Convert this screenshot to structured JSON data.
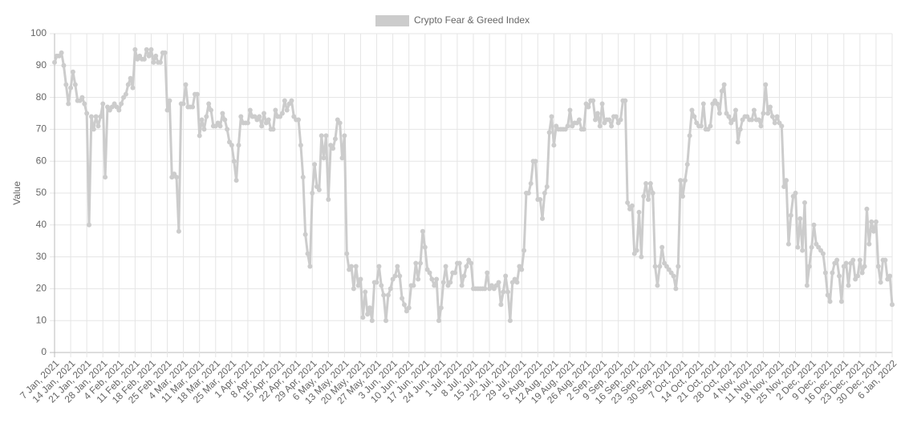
{
  "chart_data": {
    "type": "line",
    "y_label": "Value",
    "ylim": [
      0,
      100
    ],
    "yticks": [
      0,
      10,
      20,
      30,
      40,
      50,
      60,
      70,
      80,
      90,
      100
    ],
    "grid": true,
    "legend": "top",
    "categories": [
      "7 Jan, 2021",
      null,
      null,
      null,
      null,
      null,
      null,
      "14 Jan, 2021",
      null,
      null,
      null,
      null,
      null,
      null,
      "21 Jan, 2021",
      null,
      null,
      null,
      null,
      null,
      null,
      "28 Jan, 2021",
      null,
      null,
      null,
      null,
      null,
      null,
      "4 Feb, 2021",
      null,
      null,
      null,
      null,
      null,
      null,
      "11 Feb, 2021",
      null,
      null,
      null,
      null,
      null,
      null,
      "18 Feb, 2021",
      null,
      null,
      null,
      null,
      null,
      null,
      "25 Feb, 2021",
      null,
      null,
      null,
      null,
      null,
      null,
      "4 Mar, 2021",
      null,
      null,
      null,
      null,
      null,
      null,
      "11 Mar, 2021",
      null,
      null,
      null,
      null,
      null,
      null,
      "18 Mar, 2021",
      null,
      null,
      null,
      null,
      null,
      null,
      "25 Mar, 2021",
      null,
      null,
      null,
      null,
      null,
      null,
      "1 Apr, 2021",
      null,
      null,
      null,
      null,
      null,
      null,
      "8 Apr, 2021",
      null,
      null,
      null,
      null,
      null,
      null,
      "15 Apr, 2021",
      null,
      null,
      null,
      null,
      null,
      null,
      "22 Apr, 2021",
      null,
      null,
      null,
      null,
      null,
      null,
      "29 Apr, 2021",
      null,
      null,
      null,
      null,
      null,
      null,
      "6 May, 2021",
      null,
      null,
      null,
      null,
      null,
      null,
      "13 May, 2021",
      null,
      null,
      null,
      null,
      null,
      null,
      "20 May, 2021",
      null,
      null,
      null,
      null,
      null,
      null,
      "27 May, 2021",
      null,
      null,
      null,
      null,
      null,
      null,
      "3 Jun, 2021",
      null,
      null,
      null,
      null,
      null,
      null,
      "10 Jun, 2021",
      null,
      null,
      null,
      null,
      null,
      null,
      "17 Jun, 2021",
      null,
      null,
      null,
      null,
      null,
      null,
      "24 Jun, 2021",
      null,
      null,
      null,
      null,
      null,
      null,
      "1 Jul, 2021",
      null,
      null,
      null,
      null,
      null,
      null,
      "8 Jul, 2021",
      null,
      null,
      null,
      null,
      null,
      null,
      "15 Jul, 2021",
      null,
      null,
      null,
      null,
      null,
      null,
      "22 Jul, 2021",
      null,
      null,
      null,
      null,
      null,
      null,
      "29 Jul, 2021",
      null,
      null,
      null,
      null,
      null,
      null,
      "5 Aug, 2021",
      null,
      null,
      null,
      null,
      null,
      null,
      "12 Aug, 2021",
      null,
      null,
      null,
      null,
      null,
      null,
      "19 Aug, 2021",
      null,
      null,
      null,
      null,
      null,
      null,
      "26 Aug, 2021",
      null,
      null,
      null,
      null,
      null,
      null,
      "2 Sep, 2021",
      null,
      null,
      null,
      null,
      null,
      null,
      "9 Sep, 2021",
      null,
      null,
      null,
      null,
      null,
      null,
      "16 Sep, 2021",
      null,
      null,
      null,
      null,
      null,
      null,
      "23 Sep, 2021",
      null,
      null,
      null,
      null,
      null,
      null,
      "30 Sep, 2021",
      null,
      null,
      null,
      null,
      null,
      null,
      "7 Oct, 2021",
      null,
      null,
      null,
      null,
      null,
      null,
      "14 Oct, 2021",
      null,
      null,
      null,
      null,
      null,
      null,
      "21 Oct, 2021",
      null,
      null,
      null,
      null,
      null,
      null,
      "28 Oct, 2021",
      null,
      null,
      null,
      null,
      null,
      null,
      "4 Nov, 2021",
      null,
      null,
      null,
      null,
      null,
      null,
      "11 Nov, 2021",
      null,
      null,
      null,
      null,
      null,
      null,
      "18 Nov, 2021",
      null,
      null,
      null,
      null,
      null,
      null,
      "25 Nov, 2021",
      null,
      null,
      null,
      null,
      null,
      null,
      "2 Dec, 2021",
      null,
      null,
      null,
      null,
      null,
      null,
      "9 Dec, 2021",
      null,
      null,
      null,
      null,
      null,
      null,
      "16 Dec, 2021",
      null,
      null,
      null,
      null,
      null,
      null,
      "23 Dec, 2021",
      null,
      null,
      null,
      null,
      null,
      null,
      "30 Dec, 2021",
      null,
      null,
      null,
      null,
      null,
      null,
      "6 Jan, 2022"
    ],
    "series": [
      {
        "name": "Crypto Fear & Greed Index",
        "color": "#cccccc",
        "values": [
          91,
          93,
          93,
          94,
          90,
          84,
          78,
          83,
          88,
          84,
          79,
          79,
          80,
          78,
          75,
          40,
          74,
          70,
          74,
          71,
          74,
          78,
          55,
          77,
          76,
          77,
          78,
          77,
          76,
          78,
          80,
          81,
          84,
          86,
          83,
          95,
          92,
          93,
          92,
          92,
          95,
          93,
          95,
          91,
          93,
          91,
          91,
          94,
          94,
          76,
          79,
          55,
          56,
          55,
          38,
          78,
          78,
          84,
          77,
          77,
          77,
          81,
          81,
          68,
          73,
          70,
          74,
          78,
          76,
          71,
          71,
          72,
          71,
          75,
          73,
          70,
          66,
          65,
          60,
          54,
          65,
          74,
          72,
          72,
          72,
          76,
          74,
          74,
          73,
          74,
          71,
          75,
          72,
          73,
          70,
          70,
          76,
          74,
          74,
          75,
          79,
          76,
          78,
          79,
          74,
          73,
          73,
          65,
          55,
          37,
          31,
          27,
          50,
          59,
          52,
          51,
          68,
          61,
          68,
          48,
          65,
          64,
          67,
          73,
          72,
          61,
          68,
          31,
          26,
          27,
          20,
          27,
          21,
          23,
          11,
          19,
          12,
          14,
          10,
          22,
          22,
          27,
          21,
          18,
          10,
          18,
          20,
          23,
          24,
          27,
          24,
          17,
          15,
          13,
          14,
          21,
          21,
          28,
          23,
          28,
          38,
          33,
          26,
          25,
          23,
          21,
          23,
          10,
          14,
          22,
          27,
          21,
          22,
          25,
          25,
          28,
          28,
          21,
          24,
          27,
          29,
          28,
          20,
          20,
          20,
          20,
          20,
          20,
          25,
          20,
          21,
          20,
          21,
          22,
          15,
          19,
          24,
          19,
          10,
          22,
          23,
          22,
          27,
          26,
          32,
          50,
          50,
          53,
          60,
          60,
          48,
          48,
          42,
          50,
          52,
          69,
          74,
          65,
          71,
          70,
          70,
          70,
          70,
          71,
          76,
          71,
          72,
          72,
          73,
          70,
          70,
          78,
          77,
          79,
          79,
          73,
          75,
          71,
          78,
          72,
          73,
          73,
          71,
          74,
          74,
          72,
          73,
          79,
          79,
          47,
          45,
          46,
          31,
          32,
          44,
          30,
          49,
          53,
          48,
          53,
          50,
          27,
          21,
          27,
          33,
          28,
          27,
          26,
          25,
          24,
          20,
          27,
          54,
          49,
          54,
          59,
          68,
          76,
          74,
          72,
          71,
          71,
          78,
          70,
          70,
          71,
          78,
          79,
          78,
          75,
          82,
          84,
          75,
          74,
          72,
          73,
          76,
          66,
          70,
          73,
          74,
          74,
          73,
          73,
          76,
          73,
          73,
          71,
          75,
          84,
          75,
          77,
          74,
          72,
          74,
          72,
          71,
          52,
          54,
          34,
          43,
          49,
          50,
          33,
          42,
          32,
          47,
          21,
          27,
          33,
          40,
          34,
          33,
          32,
          31,
          25,
          18,
          16,
          25,
          28,
          29,
          24,
          16,
          27,
          28,
          21,
          28,
          29,
          23,
          24,
          29,
          25,
          27,
          45,
          34,
          41,
          38,
          41,
          27,
          22,
          29,
          29,
          23,
          24,
          15
        ]
      }
    ]
  }
}
